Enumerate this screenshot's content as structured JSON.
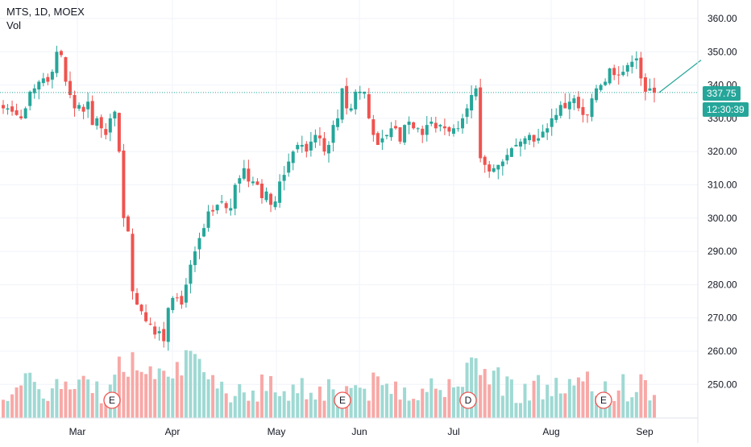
{
  "legend": {
    "symbol_line": "MTS, 1D, MOEX",
    "volume_label": "Vol"
  },
  "price_axis": {
    "ticks": [
      "360.00",
      "350.00",
      "340.00",
      "330.00",
      "320.00",
      "310.00",
      "300.00",
      "290.00",
      "280.00",
      "270.00",
      "260.00",
      "250.00"
    ]
  },
  "last_price": {
    "value": "337.75",
    "countdown": "12:30:39",
    "color": "#26a69a"
  },
  "colors": {
    "up": "#26a69a",
    "down": "#ef5350",
    "up_volume": "#9fd9d3",
    "down_volume": "#f7a9a7",
    "grid": "#f0f3fa",
    "event_circle": "#ef5350"
  },
  "chart_data": {
    "type": "candlestick",
    "x_axis_labels": [
      "Mar",
      "Apr",
      "May",
      "Jun",
      "Jul",
      "Aug",
      "Sep"
    ],
    "ylim": [
      245,
      363
    ],
    "grid": true,
    "last_value": 337.75,
    "event_markers": [
      {
        "label": "E",
        "date": "Mar 10"
      },
      {
        "label": "E",
        "date": "May 19"
      },
      {
        "label": "D",
        "date": "Jul 6"
      },
      {
        "label": "E",
        "date": "Aug 19"
      }
    ],
    "closes": [
      333,
      333,
      332,
      331,
      330,
      333,
      338,
      339,
      341,
      342,
      341,
      344,
      350,
      349,
      341,
      337,
      333,
      334,
      332,
      335,
      328,
      330,
      327,
      325,
      330,
      332,
      320,
      300,
      296,
      278,
      274,
      272,
      269,
      268,
      265,
      266,
      263,
      273,
      276,
      276,
      274,
      280,
      286,
      290,
      294,
      297,
      302,
      302,
      304,
      305,
      303,
      303,
      310,
      312,
      315,
      311,
      311,
      310,
      306,
      308,
      304,
      305,
      311,
      313,
      317,
      320,
      322,
      322,
      320,
      323,
      325,
      324,
      320,
      322,
      328,
      330,
      339,
      333,
      333,
      338,
      338,
      338,
      330,
      325,
      322,
      324,
      325,
      327,
      327,
      323,
      328,
      329,
      327,
      327,
      325,
      328,
      329,
      327,
      328,
      327,
      326,
      327,
      327,
      330,
      333,
      337,
      339,
      318,
      316,
      314,
      315,
      316,
      317,
      319,
      321,
      322,
      323,
      324,
      325,
      323,
      324,
      326,
      327,
      330,
      331,
      334,
      333,
      335,
      336,
      333,
      331,
      331,
      336,
      339,
      340,
      341,
      345,
      343,
      343,
      344,
      346,
      347,
      348,
      342,
      338,
      339,
      337.75
    ],
    "volume_scale": "relative",
    "volume_bar_count": 147
  }
}
